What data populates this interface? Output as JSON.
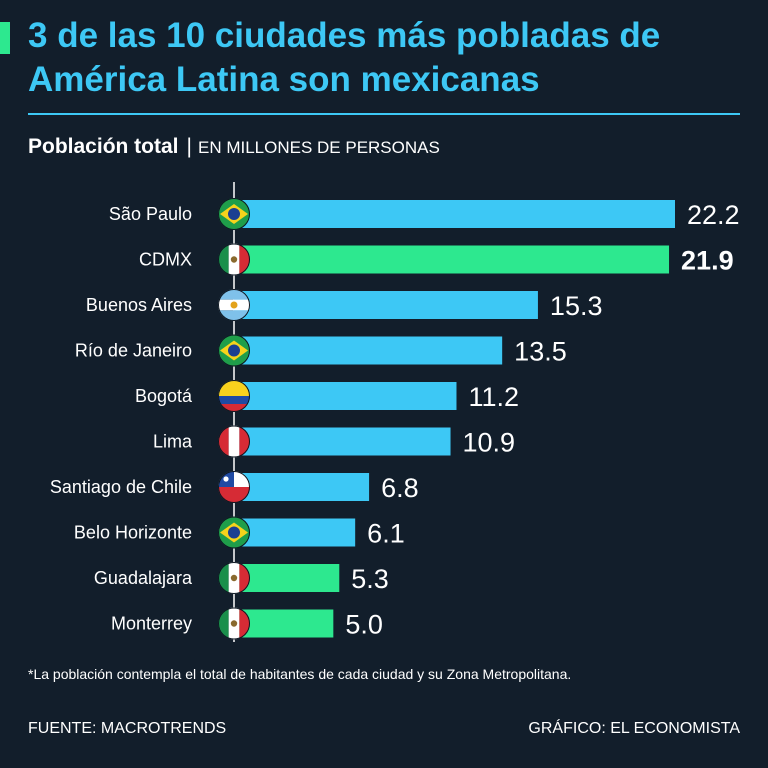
{
  "header": {
    "title": "3 de las 10 ciudades más pobladas de América Latina son mexicanas",
    "subtitle_bold": "Población total",
    "subtitle_separator": "|",
    "subtitle_unit": "EN MILLONES DE PERSONAS"
  },
  "colors": {
    "background": "#121e2b",
    "accent_green": "#2de88f",
    "bar_blue": "#3dc8f5",
    "title_blue": "#3dc8f5"
  },
  "chart_data": {
    "type": "bar",
    "orientation": "horizontal",
    "title": "Población total",
    "xlabel": "EN MILLONES DE PERSONAS",
    "ylabel": "",
    "xlim": [
      0,
      22.2
    ],
    "grid": false,
    "categories": [
      "São Paulo",
      "CDMX",
      "Buenos Aires",
      "Río de Janeiro",
      "Bogotá",
      "Lima",
      "Santiago de Chile",
      "Belo Horizonte",
      "Guadalajara",
      "Monterrey"
    ],
    "values": [
      22.2,
      21.9,
      15.3,
      13.5,
      11.2,
      10.9,
      6.8,
      6.1,
      5.3,
      5.0
    ],
    "value_labels": [
      "22.2",
      "21.9",
      "15.3",
      "13.5",
      "11.2",
      "10.9",
      "6.8",
      "6.1",
      "5.3",
      "5.0"
    ],
    "countries": [
      "brazil",
      "mexico",
      "argentina",
      "brazil",
      "colombia",
      "peru",
      "chile",
      "brazil",
      "mexico",
      "mexico"
    ],
    "highlight": [
      false,
      true,
      false,
      false,
      false,
      false,
      false,
      false,
      true,
      true
    ],
    "bold_value": [
      false,
      true,
      false,
      false,
      false,
      false,
      false,
      false,
      false,
      false
    ]
  },
  "footer": {
    "note": "*La población contempla el total de habitantes de cada ciudad y su Zona Metropolitana.",
    "source": "FUENTE: MACROTRENDS",
    "credit": "GRÁFICO: EL ECONOMISTA"
  }
}
